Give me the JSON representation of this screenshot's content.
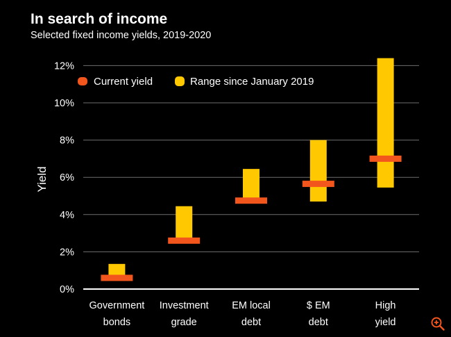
{
  "chart_data": {
    "type": "range-bar",
    "title": "In search of income",
    "subtitle": "Selected fixed income yields, 2019-2020",
    "ylabel": "Yield",
    "xlabel": "",
    "ylim": [
      0,
      12.5
    ],
    "yticks": [
      0,
      2,
      4,
      6,
      8,
      10,
      12
    ],
    "ytick_labels": [
      "0%",
      "2%",
      "4%",
      "6%",
      "8%",
      "10%",
      "12%"
    ],
    "categories": [
      {
        "line1": "Government",
        "line2": "bonds"
      },
      {
        "line1": "Investment",
        "line2": "grade"
      },
      {
        "line1": "EM local",
        "line2": "debt"
      },
      {
        "line1": "$ EM",
        "line2": "debt"
      },
      {
        "line1": "High",
        "line2": "yield"
      }
    ],
    "series": [
      {
        "name": "Range since January 2019",
        "color": "#FFC800",
        "ranges": [
          [
            0.45,
            1.35
          ],
          [
            2.45,
            4.45
          ],
          [
            4.75,
            6.45
          ],
          [
            4.7,
            8.0
          ],
          [
            5.45,
            12.4
          ]
        ]
      },
      {
        "name": "Current yield",
        "color": "#F2561D",
        "values": [
          0.6,
          2.6,
          4.75,
          5.65,
          7.0
        ]
      }
    ],
    "legend": [
      {
        "label": "Current yield",
        "color": "#F2561D"
      },
      {
        "label": "Range since January 2019",
        "color": "#FFC800"
      }
    ],
    "legend_position": "top-left",
    "grid": true
  },
  "colors": {
    "background": "#000000",
    "gridline": "#6e6e6e",
    "axis": "#ffffff"
  },
  "icons": {
    "zoom": "zoom-in-icon"
  }
}
